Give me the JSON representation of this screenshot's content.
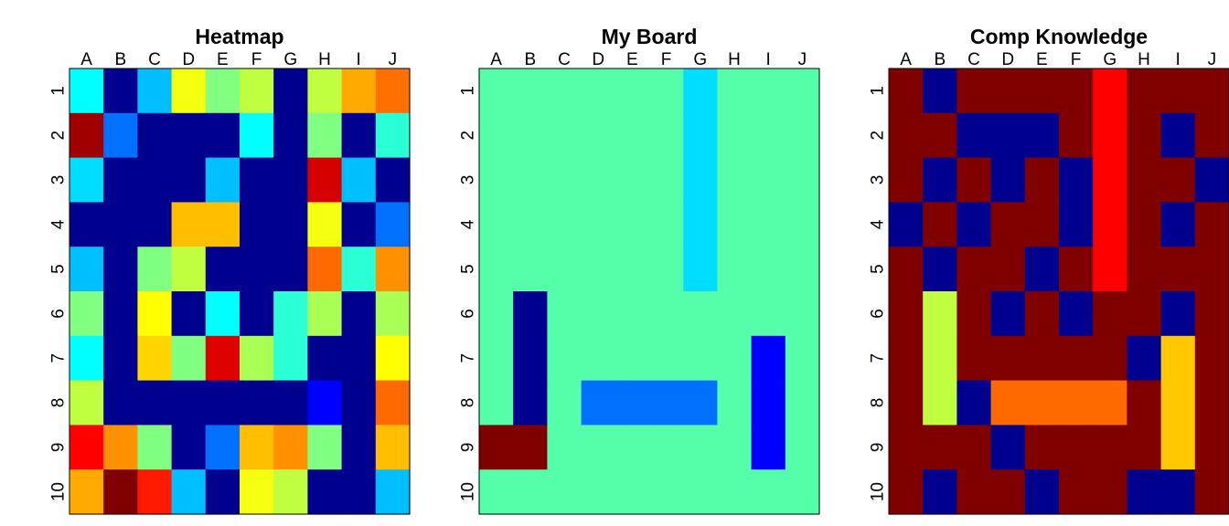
{
  "palette": {
    "0": "#00008F",
    "1": "#0000FF",
    "2": "#0080FF",
    "3": "#00BFFF",
    "4": "#00FFFF",
    "5": "#2AFFD5",
    "6": "#55FFAA",
    "7": "#80FF80",
    "8": "#AAFF55",
    "9": "#C0FF40",
    "10": "#FFFF00",
    "11": "#FFD500",
    "12": "#FFAA00",
    "13": "#FF8000",
    "14": "#FF6A00",
    "15": "#FF1A00",
    "16": "#DF0000",
    "17": "#A00000",
    "18": "#800000",
    "19": "#0070FF",
    "20": "#00DDFF",
    "21": "#F5FF10",
    "22": "#FFBF00",
    "23": "#FF9000",
    "24": "#FF7000",
    "25": "#D50000",
    "26": "#FF0000",
    "27": "#FFC800"
  },
  "chart_data": [
    {
      "type": "heatmap",
      "title": "Heatmap",
      "columns": [
        "A",
        "B",
        "C",
        "D",
        "E",
        "F",
        "G",
        "H",
        "I",
        "J"
      ],
      "rows": [
        "1",
        "2",
        "3",
        "4",
        "5",
        "6",
        "7",
        "8",
        "9",
        "10"
      ],
      "color_index": [
        [
          4,
          0,
          3,
          21,
          7,
          9,
          0,
          9,
          12,
          24
        ],
        [
          17,
          19,
          0,
          0,
          0,
          4,
          0,
          7,
          0,
          5
        ],
        [
          20,
          0,
          0,
          0,
          3,
          0,
          0,
          25,
          3,
          0
        ],
        [
          0,
          0,
          0,
          22,
          22,
          0,
          0,
          21,
          0,
          19
        ],
        [
          3,
          0,
          7,
          9,
          0,
          0,
          0,
          14,
          5,
          23
        ],
        [
          7,
          0,
          10,
          0,
          4,
          0,
          5,
          8,
          0,
          8
        ],
        [
          4,
          0,
          11,
          7,
          16,
          8,
          5,
          0,
          0,
          10
        ],
        [
          9,
          0,
          0,
          0,
          0,
          0,
          0,
          1,
          0,
          14
        ],
        [
          26,
          23,
          7,
          0,
          19,
          22,
          23,
          7,
          0,
          22
        ],
        [
          12,
          18,
          15,
          3,
          0,
          21,
          9,
          0,
          0,
          3
        ]
      ]
    },
    {
      "type": "heatmap",
      "title": "My Board",
      "columns": [
        "A",
        "B",
        "C",
        "D",
        "E",
        "F",
        "G",
        "H",
        "I",
        "J"
      ],
      "rows": [
        "1",
        "2",
        "3",
        "4",
        "5",
        "6",
        "7",
        "8",
        "9",
        "10"
      ],
      "color_index": [
        [
          6,
          6,
          6,
          6,
          6,
          6,
          20,
          6,
          6,
          6
        ],
        [
          6,
          6,
          6,
          6,
          6,
          6,
          20,
          6,
          6,
          6
        ],
        [
          6,
          6,
          6,
          6,
          6,
          6,
          20,
          6,
          6,
          6
        ],
        [
          6,
          6,
          6,
          6,
          6,
          6,
          20,
          6,
          6,
          6
        ],
        [
          6,
          6,
          6,
          6,
          6,
          6,
          20,
          6,
          6,
          6
        ],
        [
          6,
          0,
          6,
          6,
          6,
          6,
          6,
          6,
          6,
          6
        ],
        [
          6,
          0,
          6,
          6,
          6,
          6,
          6,
          6,
          1,
          6
        ],
        [
          6,
          0,
          6,
          19,
          19,
          19,
          19,
          6,
          1,
          6
        ],
        [
          18,
          18,
          6,
          6,
          6,
          6,
          6,
          6,
          1,
          6
        ],
        [
          6,
          6,
          6,
          6,
          6,
          6,
          6,
          6,
          6,
          6
        ]
      ]
    },
    {
      "type": "heatmap",
      "title": "Comp Knowledge",
      "columns": [
        "A",
        "B",
        "C",
        "D",
        "E",
        "F",
        "G",
        "H",
        "I",
        "J"
      ],
      "rows": [
        "1",
        "2",
        "3",
        "4",
        "5",
        "6",
        "7",
        "8",
        "9",
        "10"
      ],
      "color_index": [
        [
          18,
          0,
          18,
          18,
          18,
          18,
          26,
          18,
          18,
          18
        ],
        [
          18,
          18,
          0,
          0,
          0,
          18,
          26,
          18,
          0,
          18
        ],
        [
          18,
          0,
          18,
          0,
          18,
          0,
          26,
          18,
          18,
          0
        ],
        [
          0,
          18,
          0,
          18,
          18,
          0,
          26,
          18,
          0,
          18
        ],
        [
          18,
          0,
          18,
          18,
          0,
          18,
          26,
          18,
          18,
          18
        ],
        [
          18,
          9,
          18,
          0,
          18,
          0,
          18,
          18,
          0,
          18
        ],
        [
          18,
          9,
          18,
          18,
          18,
          18,
          18,
          0,
          27,
          18
        ],
        [
          18,
          9,
          0,
          14,
          14,
          14,
          14,
          18,
          27,
          18
        ],
        [
          18,
          18,
          18,
          0,
          18,
          18,
          18,
          18,
          27,
          18
        ],
        [
          18,
          0,
          18,
          18,
          0,
          18,
          18,
          0,
          0,
          18
        ]
      ]
    }
  ]
}
